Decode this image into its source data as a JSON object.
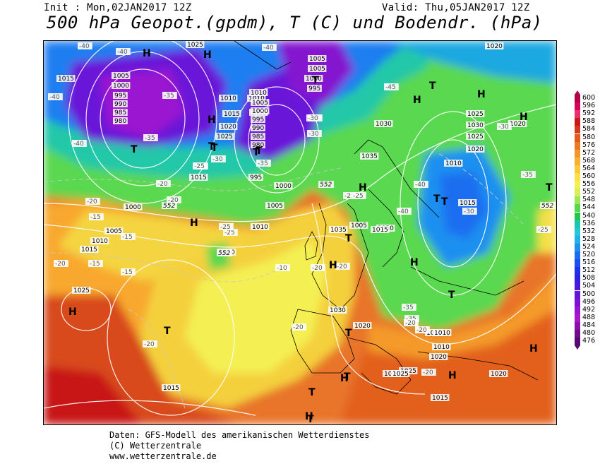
{
  "header": {
    "init": "Init : Mon,02JAN2017 12Z",
    "valid": "Valid: Thu,05JAN2017 12Z",
    "title": "500 hPa Geopot.(gpdm), T (C) und Bodendr. (hPa)"
  },
  "footer": {
    "line1": "Daten: GFS-Modell des amerikanischen Wetterdienstes",
    "line2": "(C) Wetterzentrale",
    "line3": "www.wetterzentrale.de"
  },
  "scale": {
    "values": [
      "600",
      "596",
      "592",
      "588",
      "584",
      "580",
      "576",
      "572",
      "568",
      "564",
      "560",
      "556",
      "552",
      "548",
      "544",
      "540",
      "536",
      "532",
      "528",
      "524",
      "520",
      "516",
      "512",
      "508",
      "504",
      "500",
      "496",
      "492",
      "488",
      "484",
      "480",
      "476"
    ],
    "colors": [
      "#b4004a",
      "#d8005a",
      "#e8306e",
      "#c81818",
      "#d63a1a",
      "#e25a1e",
      "#ec7a22",
      "#f4962a",
      "#f8b030",
      "#fac83a",
      "#fce04a",
      "#f4f052",
      "#d6f05a",
      "#9ee654",
      "#56d84c",
      "#20c848",
      "#18c8a8",
      "#22c8d8",
      "#22b0e8",
      "#1e90f0",
      "#1a6ef0",
      "#1a4ef0",
      "#2030e8",
      "#3020e0",
      "#4a18dc",
      "#6414d8",
      "#8010d4",
      "#9814d0",
      "#a818c8",
      "#8c10a8",
      "#700c8c",
      "#580870"
    ]
  },
  "map_labels": {
    "high_symbol": "H",
    "low_symbol": "T",
    "pressure": [
      {
        "t": "1020"
      },
      {
        "t": "1025"
      },
      {
        "t": "1005"
      },
      {
        "t": "1005"
      },
      {
        "t": "1000"
      },
      {
        "t": "995"
      },
      {
        "t": "1010"
      },
      {
        "t": "1015"
      },
      {
        "t": "1005"
      },
      {
        "t": "1000"
      },
      {
        "t": "995"
      },
      {
        "t": "990"
      },
      {
        "t": "985"
      },
      {
        "t": "980"
      },
      {
        "t": "1010"
      },
      {
        "t": "1010"
      },
      {
        "t": "1015"
      },
      {
        "t": "1020"
      },
      {
        "t": "1025"
      },
      {
        "t": "1010"
      },
      {
        "t": "1005"
      },
      {
        "t": "1000"
      },
      {
        "t": "995"
      },
      {
        "t": "990"
      },
      {
        "t": "985"
      },
      {
        "t": "980"
      },
      {
        "t": "1015"
      },
      {
        "t": "995"
      },
      {
        "t": "1000"
      },
      {
        "t": "1005"
      },
      {
        "t": "1010"
      },
      {
        "t": "1000"
      },
      {
        "t": "1005"
      },
      {
        "t": "1010"
      },
      {
        "t": "1015"
      },
      {
        "t": "1010"
      },
      {
        "t": "1025"
      },
      {
        "t": "1035"
      },
      {
        "t": "1030"
      },
      {
        "t": "1035"
      },
      {
        "t": "1030"
      },
      {
        "t": "1025"
      },
      {
        "t": "1030"
      },
      {
        "t": "1025"
      },
      {
        "t": "1020"
      },
      {
        "t": "1015"
      },
      {
        "t": "1010"
      },
      {
        "t": "1005"
      },
      {
        "t": "1030"
      },
      {
        "t": "1020"
      },
      {
        "t": "1015"
      },
      {
        "t": "1010"
      },
      {
        "t": "1015"
      },
      {
        "t": "1020"
      },
      {
        "t": "1025"
      },
      {
        "t": "1015"
      },
      {
        "t": "1020"
      },
      {
        "t": "1025"
      },
      {
        "t": "1010"
      },
      {
        "t": "1015"
      },
      {
        "t": "1020"
      },
      {
        "t": "1020"
      }
    ],
    "temps": [
      {
        "t": "-40"
      },
      {
        "t": "-40"
      },
      {
        "t": "-40"
      },
      {
        "t": "-40"
      },
      {
        "t": "-35"
      },
      {
        "t": "-35"
      },
      {
        "t": "-40"
      },
      {
        "t": "-30"
      },
      {
        "t": "-30"
      },
      {
        "t": "-25"
      },
      {
        "t": "-35"
      },
      {
        "t": "-25"
      },
      {
        "t": "-20"
      },
      {
        "t": "-20"
      },
      {
        "t": "-15"
      },
      {
        "t": "-15"
      },
      {
        "t": "-15"
      },
      {
        "t": "-15"
      },
      {
        "t": "-25"
      },
      {
        "t": "-20"
      },
      {
        "t": "-10"
      },
      {
        "t": "-20"
      },
      {
        "t": "-20"
      },
      {
        "t": "-25"
      },
      {
        "t": "-20"
      },
      {
        "t": "-20"
      },
      {
        "t": "-45"
      },
      {
        "t": "-35"
      },
      {
        "t": "-30"
      },
      {
        "t": "-35"
      },
      {
        "t": "-40"
      },
      {
        "t": "-40"
      },
      {
        "t": "-30"
      },
      {
        "t": "-30"
      },
      {
        "t": "-25"
      },
      {
        "t": "-35"
      },
      {
        "t": "-30"
      },
      {
        "t": "-25"
      },
      {
        "t": "-20"
      },
      {
        "t": "-20"
      },
      {
        "t": "-25"
      },
      {
        "t": "-20"
      },
      {
        "t": "-20"
      }
    ],
    "geopot": [
      {
        "t": "552"
      },
      {
        "t": "552"
      },
      {
        "t": "552"
      },
      {
        "t": "552"
      }
    ]
  }
}
